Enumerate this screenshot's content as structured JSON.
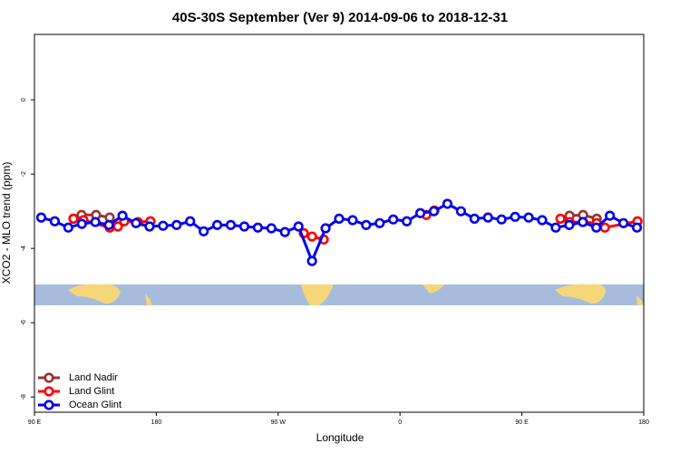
{
  "chart_data": {
    "type": "line",
    "title": "40S-30S September (Ver 9)   2014-09-06 to 2018-12-31",
    "x_label": "Longitude",
    "y_label": "XCO2 - MLO trend (ppm)",
    "xlim": [
      90,
      540
    ],
    "xticks": [
      {
        "value": 90,
        "label": "90 E"
      },
      180,
      {
        "value": 270,
        "label": "90 W"
      },
      {
        "value": 360,
        "label": "0"
      },
      {
        "value": 450,
        "label": "90 E"
      },
      {
        "value": 540,
        "label": "180"
      }
    ],
    "ylim": [
      -8.41,
      1.76
    ],
    "yticks": [
      0,
      -2,
      -4,
      -6,
      -8
    ],
    "legend": "bottom-left",
    "series": [
      {
        "name": "Land Nadir",
        "color": "#993333",
        "x": [
          118.8,
          124.8,
          135.5,
          145.6,
          300,
          485.2,
          495.2,
          505.3
        ],
        "values": [
          -3.2,
          -3.1,
          -3.1,
          -3.17,
          null,
          -3.12,
          -3.1,
          -3.2
        ]
      },
      {
        "name": "Land Glint",
        "color": "#ff0000",
        "x": [
          118.8,
          126.2,
          145.6,
          151.6,
          156.3,
          166.4,
          175.7,
          230,
          288.9,
          295,
          303.7,
          340,
          379.4,
          385.4,
          430,
          478.5,
          485.2,
          495.2,
          505.3,
          511.3,
          535.4
        ],
        "values": [
          -3.2,
          -3.24,
          -3.44,
          -3.41,
          -3.27,
          -3.29,
          -3.27,
          null,
          -3.59,
          -3.68,
          -3.76,
          null,
          -3.1,
          -2.98,
          null,
          -3.2,
          -3.29,
          -3.29,
          -3.32,
          -3.44,
          -3.27
        ]
      },
      {
        "name": "Ocean Glint",
        "color": "#0000ee",
        "x": [
          95,
          105,
          115,
          125,
          135,
          145,
          155,
          165,
          175,
          185,
          195,
          205,
          215,
          225,
          235,
          245,
          255,
          265,
          275,
          285,
          295,
          305,
          315,
          325,
          335,
          345,
          355,
          365,
          375,
          385,
          395,
          405,
          415,
          425,
          435,
          445,
          455,
          465,
          475,
          485,
          495,
          505,
          515,
          525,
          535
        ],
        "values": [
          -3.17,
          -3.27,
          -3.44,
          -3.34,
          -3.29,
          -3.37,
          -3.12,
          -3.32,
          -3.41,
          -3.39,
          -3.37,
          -3.27,
          -3.54,
          -3.37,
          -3.37,
          -3.41,
          -3.44,
          -3.46,
          -3.56,
          -3.41,
          -4.34,
          -3.46,
          -3.2,
          -3.24,
          -3.37,
          -3.32,
          -3.22,
          -3.27,
          -3.05,
          -3.0,
          -2.8,
          -3.0,
          -3.2,
          -3.17,
          -3.22,
          -3.15,
          -3.17,
          -3.24,
          -3.44,
          -3.37,
          -3.29,
          -3.44,
          -3.12,
          -3.32,
          -3.44
        ]
      }
    ]
  }
}
